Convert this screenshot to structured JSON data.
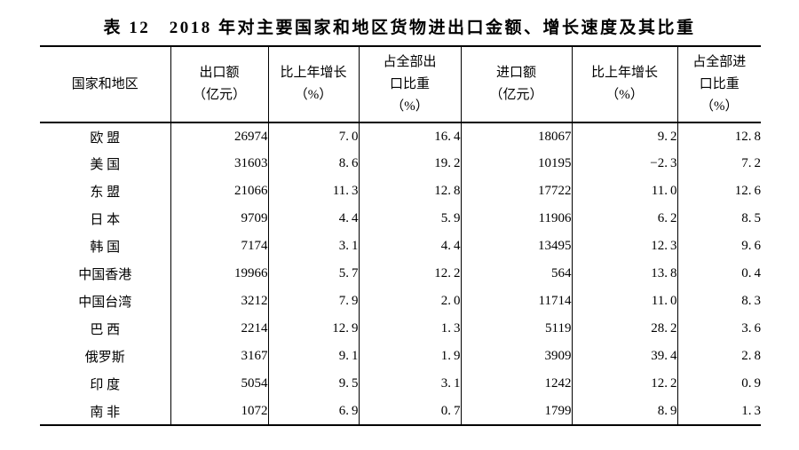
{
  "title": "表 12　2018 年对主要国家和地区货物进出口金额、增长速度及其比重",
  "colors": {
    "background": "#ffffff",
    "text": "#000000",
    "border": "#000000"
  },
  "table": {
    "columns": [
      {
        "id": "region",
        "lines": [
          "国家和地区"
        ]
      },
      {
        "id": "export_value",
        "lines": [
          "出口额",
          "（亿元）"
        ]
      },
      {
        "id": "export_growth",
        "lines": [
          "比上年增长",
          "（%）"
        ]
      },
      {
        "id": "export_share",
        "lines": [
          "占全部出",
          "口比重",
          "（%）"
        ]
      },
      {
        "id": "import_value",
        "lines": [
          "进口额",
          "（亿元）"
        ]
      },
      {
        "id": "import_growth",
        "lines": [
          "比上年增长",
          "（%）"
        ]
      },
      {
        "id": "import_share",
        "lines": [
          "占全部进",
          "口比重",
          "（%）"
        ]
      }
    ],
    "rows": [
      {
        "region": "欧 盟",
        "export_value": "26974",
        "export_growth": "7.0",
        "export_share": "16.4",
        "import_value": "18067",
        "import_growth": "9.2",
        "import_share": "12.8"
      },
      {
        "region": "美 国",
        "export_value": "31603",
        "export_growth": "8.6",
        "export_share": "19.2",
        "import_value": "10195",
        "import_growth": "-2.3",
        "import_share": "7.2"
      },
      {
        "region": "东 盟",
        "export_value": "21066",
        "export_growth": "11.3",
        "export_share": "12.8",
        "import_value": "17722",
        "import_growth": "11.0",
        "import_share": "12.6"
      },
      {
        "region": "日 本",
        "export_value": "9709",
        "export_growth": "4.4",
        "export_share": "5.9",
        "import_value": "11906",
        "import_growth": "6.2",
        "import_share": "8.5"
      },
      {
        "region": "韩 国",
        "export_value": "7174",
        "export_growth": "3.1",
        "export_share": "4.4",
        "import_value": "13495",
        "import_growth": "12.3",
        "import_share": "9.6"
      },
      {
        "region": "中国香港",
        "export_value": "19966",
        "export_growth": "5.7",
        "export_share": "12.2",
        "import_value": "564",
        "import_growth": "13.8",
        "import_share": "0.4"
      },
      {
        "region": "中国台湾",
        "export_value": "3212",
        "export_growth": "7.9",
        "export_share": "2.0",
        "import_value": "11714",
        "import_growth": "11.0",
        "import_share": "8.3"
      },
      {
        "region": "巴 西",
        "export_value": "2214",
        "export_growth": "12.9",
        "export_share": "1.3",
        "import_value": "5119",
        "import_growth": "28.2",
        "import_share": "3.6"
      },
      {
        "region": "俄罗斯",
        "export_value": "3167",
        "export_growth": "9.1",
        "export_share": "1.9",
        "import_value": "3909",
        "import_growth": "39.4",
        "import_share": "2.8"
      },
      {
        "region": "印 度",
        "export_value": "5054",
        "export_growth": "9.5",
        "export_share": "3.1",
        "import_value": "1242",
        "import_growth": "12.2",
        "import_share": "0.9"
      },
      {
        "region": "南 非",
        "export_value": "1072",
        "export_growth": "6.9",
        "export_share": "0.7",
        "import_value": "1799",
        "import_growth": "8.9",
        "import_share": "1.3"
      }
    ]
  }
}
